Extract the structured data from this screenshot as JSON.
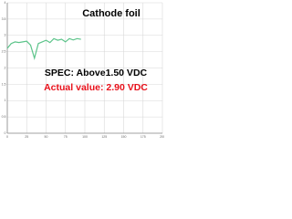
{
  "chart_data": {
    "type": "line",
    "title": "Cathode foil",
    "annotations": [
      "SPEC: Above1.50 VDC",
      "Actual value: 2.90 VDC"
    ],
    "x": [
      0,
      5,
      10,
      15,
      20,
      25,
      30,
      35,
      40,
      45,
      50,
      55,
      60,
      65,
      70,
      75,
      80,
      85,
      90,
      95
    ],
    "series": [
      {
        "color": "#5cc48a",
        "values": [
          2.6,
          2.75,
          2.8,
          2.78,
          2.8,
          2.82,
          2.7,
          2.3,
          2.75,
          2.8,
          2.85,
          2.78,
          2.9,
          2.85,
          2.88,
          2.8,
          2.9,
          2.86,
          2.9,
          2.88
        ]
      }
    ],
    "xlim": [
      0,
      200
    ],
    "xticks": [
      0,
      25,
      50,
      75,
      100,
      125,
      150,
      175,
      200
    ],
    "ylim": [
      0,
      4
    ],
    "yticks": [
      0,
      0.5,
      1,
      1.5,
      2,
      2.5,
      3,
      3.5,
      4
    ],
    "grid": true
  }
}
